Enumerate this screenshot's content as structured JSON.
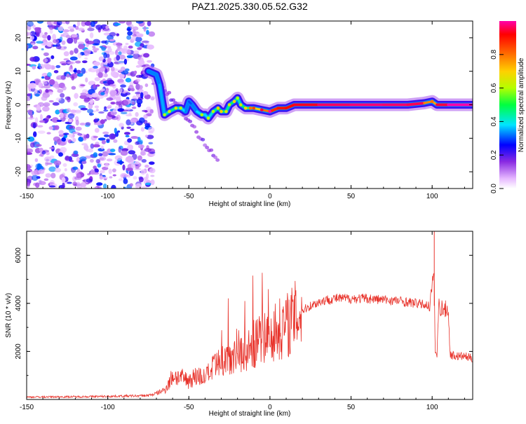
{
  "title": "PAZ1.2025.330.05.52.G32",
  "colors": {
    "signal": "#e8322a",
    "background": "#ffffff",
    "axis": "#000000"
  },
  "chart_data": [
    {
      "type": "heatmap",
      "xlabel": "Height of straight line (km)",
      "ylabel": "Frequency (Hz)",
      "xlim": [
        -150,
        125
      ],
      "ylim": [
        -25,
        25
      ],
      "xticks": [
        -150,
        -100,
        -50,
        0,
        50,
        100
      ],
      "yticks": [
        -20,
        -10,
        0,
        10,
        20
      ],
      "colorbar": {
        "label": "Normalized spectral amplitude",
        "range": [
          0,
          1
        ],
        "ticks": [
          0.0,
          0.2,
          0.4,
          0.6,
          0.8
        ],
        "tick_labels": [
          "0.0",
          "0.2",
          "0.4",
          "0.6",
          "0.8"
        ]
      },
      "ridge": {
        "x": [
          -75,
          -70,
          -68,
          -65,
          -62,
          -58,
          -55,
          -52,
          -50,
          -48,
          -45,
          -42,
          -40,
          -38,
          -35,
          -32,
          -30,
          -27,
          -25,
          -22,
          -20,
          -18,
          -15,
          -12,
          -10,
          -5,
          0,
          5,
          10,
          15,
          30,
          50,
          70,
          85,
          95,
          100,
          103,
          110,
          125
        ],
        "y": [
          10,
          9,
          6,
          -3,
          -2,
          -1,
          -1,
          -2,
          1,
          0,
          -2,
          -3,
          -3,
          -4,
          -2,
          -1,
          -2,
          -2,
          0,
          1,
          2,
          0,
          -1,
          -1,
          -1,
          -1.5,
          -2,
          -1,
          -1,
          0,
          0,
          0,
          0,
          0,
          0.5,
          1,
          0,
          0,
          0
        ],
        "amplitude": [
          0.3,
          0.35,
          0.3,
          0.4,
          0.45,
          0.45,
          0.4,
          0.35,
          0.3,
          0.3,
          0.35,
          0.4,
          0.35,
          0.4,
          0.4,
          0.5,
          0.5,
          0.45,
          0.45,
          0.5,
          0.4,
          0.45,
          0.5,
          0.6,
          0.65,
          0.75,
          0.85,
          0.9,
          0.9,
          0.92,
          0.95,
          0.98,
          0.97,
          0.97,
          0.95,
          0.6,
          0.9,
          1.0,
          1.0
        ]
      },
      "noise_region": {
        "x_range": [
          -150,
          -72
        ],
        "amplitude_range": [
          0.05,
          0.35
        ]
      }
    },
    {
      "type": "line",
      "xlabel": "Height of straight line (km)",
      "ylabel": "SNR (10 * v/v)",
      "xlim": [
        -150,
        125
      ],
      "ylim": [
        0,
        7000
      ],
      "xticks": [
        -150,
        -100,
        -50,
        0,
        50,
        100
      ],
      "yticks": [
        2000,
        4000,
        6000
      ],
      "series": [
        {
          "name": "SNR",
          "x": [
            -150,
            -130,
            -110,
            -90,
            -80,
            -75,
            -70,
            -65,
            -62,
            -60,
            -55,
            -50,
            -45,
            -40,
            -35,
            -30,
            -25,
            -20,
            -15,
            -10,
            -5,
            0,
            5,
            10,
            15,
            20,
            25,
            30,
            35,
            40,
            45,
            50,
            60,
            70,
            80,
            90,
            95,
            98,
            100,
            101,
            102,
            103,
            104,
            106,
            108,
            110,
            111,
            112,
            115,
            120,
            125
          ],
          "y": [
            100,
            110,
            120,
            140,
            150,
            170,
            250,
            400,
            700,
            1000,
            900,
            800,
            1000,
            900,
            1300,
            1500,
            1800,
            2100,
            1900,
            2300,
            2500,
            2700,
            2900,
            3100,
            3400,
            3700,
            3900,
            4050,
            4150,
            4200,
            4200,
            4200,
            4200,
            4150,
            4100,
            4000,
            3950,
            3900,
            4500,
            5500,
            2000,
            1800,
            3900,
            3800,
            3750,
            3750,
            1900,
            1850,
            1800,
            1800,
            1700
          ]
        }
      ]
    }
  ]
}
